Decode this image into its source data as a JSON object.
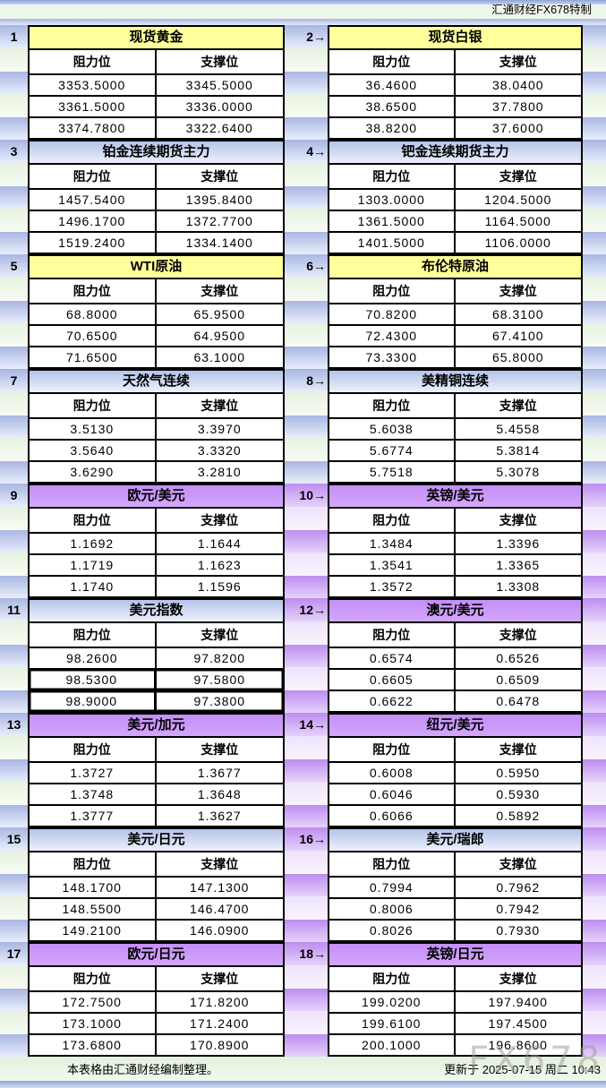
{
  "header": {
    "caption": "汇通财经FX678特制"
  },
  "columns": {
    "resistance": "阻力位",
    "support": "支撑位"
  },
  "colors": {
    "yellow_header": "#ffff9b",
    "blue_header": "#b5c3e9",
    "purple_header": "#cc99ff",
    "stripe_blue": "#a9b6e3",
    "stripe_green": "#e6f2df",
    "stripe_purple": "#bd8df0",
    "grid_line": "#000000"
  },
  "panels": [
    {
      "index": "1",
      "title": "现货黄金",
      "theme": "yellow",
      "gutter": "b",
      "rows": [
        {
          "resistance": "3353.5000",
          "support": "3345.5000"
        },
        {
          "resistance": "3361.5000",
          "support": "3336.0000"
        },
        {
          "resistance": "3374.7800",
          "support": "3322.6400"
        }
      ]
    },
    {
      "index": "2→",
      "title": "现货白银",
      "theme": "yellow",
      "rows": [
        {
          "resistance": "36.4600",
          "support": "38.0400"
        },
        {
          "resistance": "38.6500",
          "support": "37.7800"
        },
        {
          "resistance": "38.8200",
          "support": "37.6000"
        }
      ]
    },
    {
      "index": "3",
      "title": "铂金连续期货主力",
      "theme": "blue",
      "gutter": "b",
      "rows": [
        {
          "resistance": "1457.5400",
          "support": "1395.8400"
        },
        {
          "resistance": "1496.1700",
          "support": "1372.7700"
        },
        {
          "resistance": "1519.2400",
          "support": "1334.1400"
        }
      ]
    },
    {
      "index": "4→",
      "title": "钯金连续期货主力",
      "theme": "blue",
      "rows": [
        {
          "resistance": "1303.0000",
          "support": "1204.5000"
        },
        {
          "resistance": "1361.5000",
          "support": "1164.5000"
        },
        {
          "resistance": "1401.5000",
          "support": "1106.0000"
        }
      ]
    },
    {
      "index": "5",
      "title": "WTI原油",
      "theme": "yellow",
      "gutter": "b",
      "rows": [
        {
          "resistance": "68.8000",
          "support": "65.9500"
        },
        {
          "resistance": "70.6500",
          "support": "64.9500"
        },
        {
          "resistance": "71.6500",
          "support": "63.1000"
        }
      ]
    },
    {
      "index": "6→",
      "title": "布伦特原油",
      "theme": "yellow",
      "rows": [
        {
          "resistance": "70.8200",
          "support": "68.3100"
        },
        {
          "resistance": "72.4300",
          "support": "67.4100"
        },
        {
          "resistance": "73.3300",
          "support": "65.8000"
        }
      ]
    },
    {
      "index": "7",
      "title": "天然气连续",
      "theme": "blue",
      "gutter": "b",
      "rows": [
        {
          "resistance": "3.5130",
          "support": "3.3970"
        },
        {
          "resistance": "3.5640",
          "support": "3.3320"
        },
        {
          "resistance": "3.6290",
          "support": "3.2810"
        }
      ]
    },
    {
      "index": "8→",
      "title": "美精铜连续",
      "theme": "blue",
      "rows": [
        {
          "resistance": "5.6038",
          "support": "5.4558"
        },
        {
          "resistance": "5.6774",
          "support": "5.3814"
        },
        {
          "resistance": "5.7518",
          "support": "5.3078"
        }
      ]
    },
    {
      "index": "9",
      "title": "欧元/美元",
      "theme": "purple",
      "gutter": "p",
      "rows": [
        {
          "resistance": "1.1692",
          "support": "1.1644"
        },
        {
          "resistance": "1.1719",
          "support": "1.1623"
        },
        {
          "resistance": "1.1740",
          "support": "1.1596"
        }
      ]
    },
    {
      "index": "10→",
      "title": "英镑/美元",
      "theme": "purple",
      "rows": [
        {
          "resistance": "1.3484",
          "support": "1.3396"
        },
        {
          "resistance": "1.3541",
          "support": "1.3365"
        },
        {
          "resistance": "1.3572",
          "support": "1.3308"
        }
      ]
    },
    {
      "index": "11",
      "title": "美元指数",
      "theme": "blue",
      "gutter": "p",
      "highlight_rows": [
        1,
        2
      ],
      "rows": [
        {
          "resistance": "98.2600",
          "support": "97.8200"
        },
        {
          "resistance": "98.5300",
          "support": "97.5800"
        },
        {
          "resistance": "98.9000",
          "support": "97.3800"
        }
      ]
    },
    {
      "index": "12→",
      "title": "澳元/美元",
      "theme": "purple",
      "rows": [
        {
          "resistance": "0.6574",
          "support": "0.6526"
        },
        {
          "resistance": "0.6605",
          "support": "0.6509"
        },
        {
          "resistance": "0.6622",
          "support": "0.6478"
        }
      ]
    },
    {
      "index": "13",
      "title": "美元/加元",
      "theme": "purple",
      "gutter": "p",
      "rows": [
        {
          "resistance": "1.3727",
          "support": "1.3677"
        },
        {
          "resistance": "1.3748",
          "support": "1.3648"
        },
        {
          "resistance": "1.3777",
          "support": "1.3627"
        }
      ]
    },
    {
      "index": "14→",
      "title": "纽元/美元",
      "theme": "purple",
      "rows": [
        {
          "resistance": "0.6008",
          "support": "0.5950"
        },
        {
          "resistance": "0.6046",
          "support": "0.5930"
        },
        {
          "resistance": "0.6066",
          "support": "0.5892"
        }
      ]
    },
    {
      "index": "15",
      "title": "美元/日元",
      "theme": "blue",
      "gutter": "p",
      "rows": [
        {
          "resistance": "148.1700",
          "support": "147.1300"
        },
        {
          "resistance": "148.5500",
          "support": "146.4700"
        },
        {
          "resistance": "149.2100",
          "support": "146.0900"
        }
      ]
    },
    {
      "index": "16→",
      "title": "美元/瑞郎",
      "theme": "blue",
      "rows": [
        {
          "resistance": "0.7994",
          "support": "0.7962"
        },
        {
          "resistance": "0.8006",
          "support": "0.7942"
        },
        {
          "resistance": "0.8026",
          "support": "0.7930"
        }
      ]
    },
    {
      "index": "17",
      "title": "欧元/日元",
      "theme": "purple",
      "gutter": "p",
      "rows": [
        {
          "resistance": "172.7500",
          "support": "171.8200"
        },
        {
          "resistance": "173.1000",
          "support": "171.2400"
        },
        {
          "resistance": "173.6800",
          "support": "170.8900"
        }
      ]
    },
    {
      "index": "18→",
      "title": "英镑/日元",
      "theme": "purple",
      "rows": [
        {
          "resistance": "199.0200",
          "support": "197.9400"
        },
        {
          "resistance": "199.6100",
          "support": "197.4500"
        },
        {
          "resistance": "200.1000",
          "support": "196.8600"
        }
      ]
    }
  ],
  "footer": {
    "note": "本表格由汇通财经编制整理。",
    "updated": "更新于  2025-07-15  周二  10:43"
  },
  "watermark": "FX678"
}
